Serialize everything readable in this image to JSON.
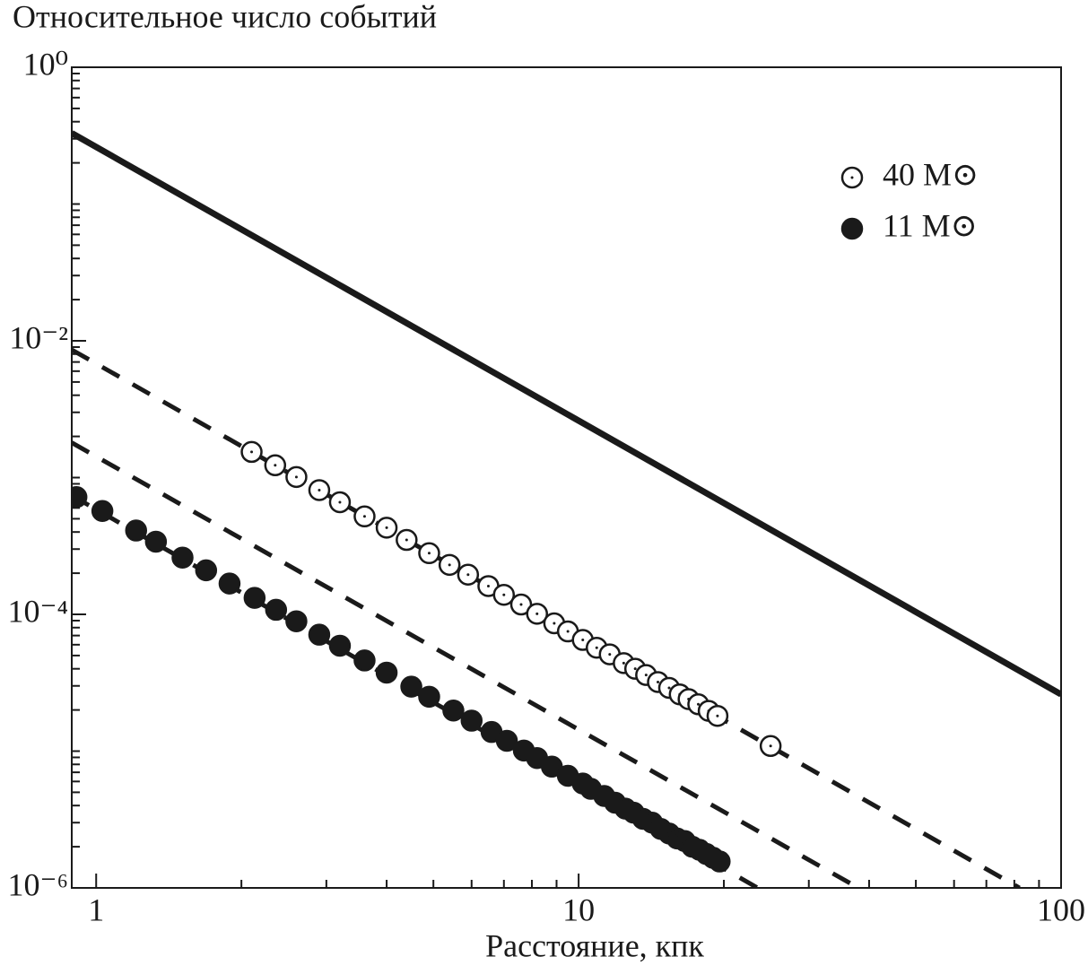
{
  "chart_data": {
    "type": "line",
    "title": "Относительное число событий",
    "x_label": "Расстояние, кпк",
    "xscale": "log",
    "yscale": "log",
    "legend": "upper right",
    "xlim": [
      0.89,
      100
    ],
    "ylim": [
      1e-06,
      1
    ],
    "xticks": [
      1,
      10,
      100
    ],
    "xminorticks": [
      2,
      3,
      4,
      5,
      6,
      7,
      8,
      9,
      20,
      30,
      40,
      50,
      60,
      70,
      80,
      90
    ],
    "yticks": [
      {
        "value": 1,
        "label": "10⁰"
      },
      {
        "value": 0.01,
        "label": "10⁻²"
      },
      {
        "value": 0.0001,
        "label": "10⁻⁴"
      },
      {
        "value": 1e-06,
        "label": "10⁻⁶"
      }
    ],
    "yminorticks": [
      2e-06,
      3e-06,
      4e-06,
      5e-06,
      6e-06,
      7e-06,
      8e-06,
      9e-06,
      1e-05,
      2e-05,
      3e-05,
      4e-05,
      5e-05,
      6e-05,
      7e-05,
      8e-05,
      9e-05,
      0.0002,
      0.0003,
      0.0004,
      0.0005,
      0.0006,
      0.0007,
      0.0008,
      0.0009,
      0.001,
      0.002,
      0.003,
      0.004,
      0.005,
      0.006,
      0.007,
      0.008,
      0.009,
      0.02,
      0.03,
      0.04,
      0.05,
      0.06,
      0.07,
      0.08,
      0.09,
      0.1,
      0.2,
      0.3,
      0.4,
      0.5,
      0.6,
      0.7,
      0.8,
      0.9
    ],
    "series": [
      {
        "style": "solid",
        "color": "#1a1a1a",
        "x": [
          0.89,
          100
        ],
        "values": [
          0.33,
          2.6e-05
        ]
      },
      {
        "style": "dashed",
        "color": "#1a1a1a",
        "x": [
          0.89,
          82
        ],
        "values": [
          0.0086,
          1e-06
        ]
      },
      {
        "style": "dashed",
        "color": "#1a1a1a",
        "x": [
          0.89,
          38
        ],
        "values": [
          0.0018,
          1e-06
        ]
      },
      {
        "style": "dashed",
        "color": "#1a1a1a",
        "x": [
          0.89,
          23.5
        ],
        "values": [
          0.00074,
          1e-06
        ]
      },
      {
        "name": "40 M⊙",
        "style": "hollow",
        "color": "#1a1a1a",
        "x": [
          2.1,
          2.35,
          2.6,
          2.9,
          3.2,
          3.6,
          4.0,
          4.4,
          4.9,
          5.4,
          5.9,
          6.5,
          7.0,
          7.6,
          8.2,
          8.9,
          9.5,
          10.2,
          10.9,
          11.6,
          12.4,
          13.1,
          13.8,
          14.6,
          15.4,
          16.2,
          16.9,
          17.7,
          18.6,
          19.4,
          25
        ],
        "values": [
          0.00154,
          0.00123,
          0.00101,
          0.00081,
          0.00066,
          0.00052,
          0.00043,
          0.00035,
          0.00028,
          0.00023,
          0.000195,
          0.000161,
          0.000139,
          0.000118,
          0.000101,
          8.6e-05,
          7.5e-05,
          6.5e-05,
          5.7e-05,
          5.1e-05,
          4.4e-05,
          4e-05,
          3.6e-05,
          3.2e-05,
          2.9e-05,
          2.6e-05,
          2.4e-05,
          2.2e-05,
          1.97e-05,
          1.81e-05,
          1.09e-05
        ]
      },
      {
        "name": "11 M⊙",
        "style": "filled",
        "color": "#1a1a1a",
        "x": [
          0.91,
          1.03,
          1.21,
          1.33,
          1.51,
          1.69,
          1.89,
          2.13,
          2.36,
          2.6,
          2.9,
          3.2,
          3.6,
          4.0,
          4.5,
          4.9,
          5.5,
          6.0,
          6.6,
          7.1,
          7.7,
          8.2,
          8.8,
          9.5,
          10.2,
          10.6,
          11.3,
          11.9,
          12.5,
          13.0,
          13.6,
          14.2,
          14.8,
          15.4,
          16.0,
          16.6,
          17.2,
          17.8,
          18.4,
          19.0,
          19.6
        ],
        "values": [
          0.00072,
          0.00057,
          0.00041,
          0.00034,
          0.00026,
          0.00021,
          0.000168,
          0.000132,
          0.000108,
          8.9e-05,
          7.1e-05,
          5.9e-05,
          4.6e-05,
          3.75e-05,
          2.96e-05,
          2.5e-05,
          1.98e-05,
          1.67e-05,
          1.38e-05,
          1.19e-05,
          1.01e-05,
          8.9e-06,
          7.7e-06,
          6.6e-06,
          5.8e-06,
          5.3e-06,
          4.7e-06,
          4.2e-06,
          3.8e-06,
          3.55e-06,
          3.2e-06,
          3e-06,
          2.7e-06,
          2.5e-06,
          2.3e-06,
          2.2e-06,
          2e-06,
          1.9e-06,
          1.77e-06,
          1.66e-06,
          1.56e-06
        ]
      }
    ]
  }
}
